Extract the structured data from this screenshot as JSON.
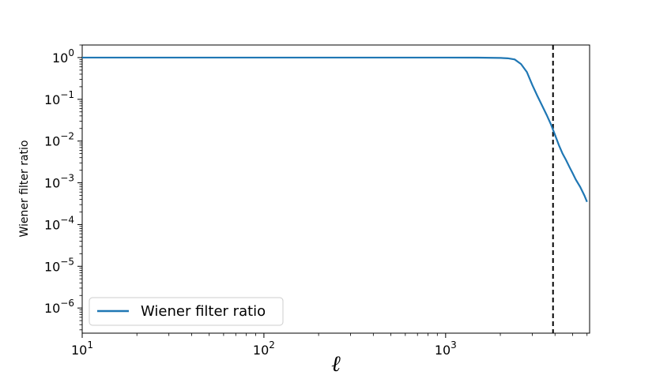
{
  "chart_data": {
    "type": "line",
    "xscale": "log",
    "yscale": "log",
    "xlim": [
      10,
      6200
    ],
    "ylim": [
      2.5e-07,
      2.0
    ],
    "xlabel": "ℓ",
    "ylabel": "Wiener filter ratio",
    "legend_placement": "lower-left",
    "grid": false,
    "x_ticks": [
      {
        "value": 10,
        "base": "10",
        "exp": "1"
      },
      {
        "value": 100,
        "base": "10",
        "exp": "2"
      },
      {
        "value": 1000,
        "base": "10",
        "exp": "3"
      }
    ],
    "y_ticks": [
      {
        "value": 1,
        "base": "10",
        "exp": "0"
      },
      {
        "value": 0.1,
        "base": "10",
        "exp": "−1"
      },
      {
        "value": 0.01,
        "base": "10",
        "exp": "−2"
      },
      {
        "value": 0.001,
        "base": "10",
        "exp": "−3"
      },
      {
        "value": 0.0001,
        "base": "10",
        "exp": "−4"
      },
      {
        "value": 1e-05,
        "base": "10",
        "exp": "−5"
      },
      {
        "value": 1e-06,
        "base": "10",
        "exp": "−6"
      }
    ],
    "vline": {
      "x": 3900,
      "style": "dashed",
      "color": "#000000"
    },
    "series": [
      {
        "name": "Wiener filter ratio",
        "color": "#1f77b4",
        "x": [
          10,
          100,
          500,
          1000,
          1500,
          2000,
          2200,
          2400,
          2600,
          2800,
          3000,
          3200,
          3400,
          3600,
          3800,
          4000,
          4200,
          4400,
          4600,
          4800,
          5000,
          5200,
          5500,
          5800,
          6000
        ],
        "y": [
          1.0,
          1.0,
          1.0,
          0.998,
          0.995,
          0.98,
          0.96,
          0.9,
          0.7,
          0.45,
          0.22,
          0.12,
          0.07,
          0.042,
          0.025,
          0.014,
          0.008,
          0.005,
          0.0035,
          0.0024,
          0.0017,
          0.0012,
          0.0008,
          0.0005,
          0.00035
        ]
      }
    ]
  }
}
